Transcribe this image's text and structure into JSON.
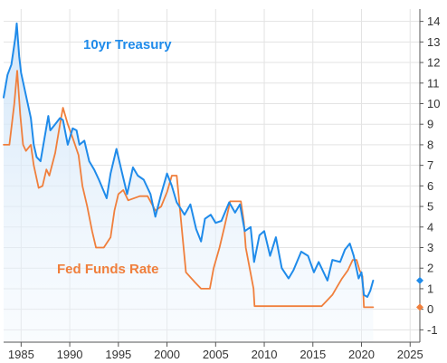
{
  "chart_data": {
    "type": "line",
    "title": "",
    "xlabel": "",
    "ylabel": "",
    "xlim": [
      1983.2,
      2026
    ],
    "ylim": [
      -1.6,
      14.6
    ],
    "y_ticks": [
      -1,
      0,
      1,
      2,
      3,
      4,
      5,
      6,
      7,
      8,
      9,
      10,
      11,
      12,
      13,
      14
    ],
    "x_ticks": [
      1985,
      1990,
      1995,
      2000,
      2005,
      2010,
      2015,
      2020,
      2025
    ],
    "grid": true,
    "y_axis_position": "right",
    "series": [
      {
        "name": "10yr Treasury",
        "color": "#1f8bea",
        "fill": "light-blue-gradient",
        "end_value": 1.4,
        "points": [
          [
            1983.2,
            10.3
          ],
          [
            1983.6,
            11.4
          ],
          [
            1984.0,
            11.9
          ],
          [
            1984.4,
            13.2
          ],
          [
            1984.55,
            13.9
          ],
          [
            1984.8,
            12.3
          ],
          [
            1985.0,
            11.5
          ],
          [
            1985.5,
            10.4
          ],
          [
            1986.0,
            9.3
          ],
          [
            1986.3,
            8.0
          ],
          [
            1986.6,
            7.4
          ],
          [
            1987.0,
            7.2
          ],
          [
            1987.4,
            8.3
          ],
          [
            1987.8,
            9.4
          ],
          [
            1988.0,
            8.7
          ],
          [
            1988.5,
            9.0
          ],
          [
            1989.0,
            9.3
          ],
          [
            1989.3,
            9.2
          ],
          [
            1989.8,
            8.0
          ],
          [
            1990.3,
            8.8
          ],
          [
            1990.7,
            8.7
          ],
          [
            1991.0,
            8.0
          ],
          [
            1991.5,
            8.2
          ],
          [
            1992.0,
            7.2
          ],
          [
            1992.5,
            6.8
          ],
          [
            1993.0,
            6.3
          ],
          [
            1993.8,
            5.4
          ],
          [
            1994.2,
            6.6
          ],
          [
            1994.8,
            7.8
          ],
          [
            1995.3,
            6.8
          ],
          [
            1995.9,
            5.6
          ],
          [
            1996.5,
            6.9
          ],
          [
            1997.0,
            6.5
          ],
          [
            1997.6,
            6.3
          ],
          [
            1998.3,
            5.6
          ],
          [
            1998.8,
            4.5
          ],
          [
            1999.4,
            5.6
          ],
          [
            2000.0,
            6.6
          ],
          [
            2000.5,
            6.0
          ],
          [
            2001.0,
            5.2
          ],
          [
            2001.8,
            4.6
          ],
          [
            2002.4,
            5.1
          ],
          [
            2003.0,
            3.9
          ],
          [
            2003.5,
            3.3
          ],
          [
            2003.9,
            4.4
          ],
          [
            2004.5,
            4.6
          ],
          [
            2005.0,
            4.2
          ],
          [
            2005.6,
            4.3
          ],
          [
            2006.4,
            5.2
          ],
          [
            2007.0,
            4.7
          ],
          [
            2007.5,
            5.1
          ],
          [
            2008.0,
            3.8
          ],
          [
            2008.6,
            4.0
          ],
          [
            2008.95,
            2.3
          ],
          [
            2009.5,
            3.6
          ],
          [
            2010.0,
            3.8
          ],
          [
            2010.6,
            2.6
          ],
          [
            2011.2,
            3.5
          ],
          [
            2011.8,
            2.0
          ],
          [
            2012.5,
            1.5
          ],
          [
            2013.0,
            1.9
          ],
          [
            2013.8,
            2.8
          ],
          [
            2014.5,
            2.6
          ],
          [
            2015.1,
            1.8
          ],
          [
            2015.6,
            2.3
          ],
          [
            2016.5,
            1.4
          ],
          [
            2017.0,
            2.4
          ],
          [
            2017.8,
            2.3
          ],
          [
            2018.3,
            2.9
          ],
          [
            2018.8,
            3.2
          ],
          [
            2019.2,
            2.6
          ],
          [
            2019.7,
            1.5
          ],
          [
            2020.0,
            1.8
          ],
          [
            2020.25,
            0.7
          ],
          [
            2020.6,
            0.6
          ],
          [
            2020.9,
            0.9
          ],
          [
            2021.2,
            1.4
          ]
        ]
      },
      {
        "name": "Fed Funds Rate",
        "color": "#f07f3c",
        "end_value": 0.1,
        "points": [
          [
            1983.2,
            8.0
          ],
          [
            1983.8,
            8.0
          ],
          [
            1984.3,
            10.0
          ],
          [
            1984.6,
            11.6
          ],
          [
            1984.9,
            9.5
          ],
          [
            1985.2,
            8.0
          ],
          [
            1985.5,
            7.7
          ],
          [
            1986.0,
            8.0
          ],
          [
            1986.3,
            7.0
          ],
          [
            1986.8,
            5.9
          ],
          [
            1987.2,
            6.0
          ],
          [
            1987.6,
            6.8
          ],
          [
            1987.9,
            6.5
          ],
          [
            1988.5,
            7.6
          ],
          [
            1989.0,
            9.0
          ],
          [
            1989.3,
            9.8
          ],
          [
            1989.8,
            9.0
          ],
          [
            1990.4,
            8.2
          ],
          [
            1990.9,
            7.5
          ],
          [
            1991.3,
            6.0
          ],
          [
            1991.8,
            5.0
          ],
          [
            1992.3,
            3.8
          ],
          [
            1992.7,
            3.0
          ],
          [
            1993.5,
            3.0
          ],
          [
            1994.2,
            3.5
          ],
          [
            1994.6,
            4.8
          ],
          [
            1995.0,
            5.6
          ],
          [
            1995.5,
            5.8
          ],
          [
            1996.0,
            5.3
          ],
          [
            1997.2,
            5.5
          ],
          [
            1998.0,
            5.5
          ],
          [
            1998.8,
            4.8
          ],
          [
            1999.4,
            5.0
          ],
          [
            2000.0,
            5.7
          ],
          [
            2000.5,
            6.5
          ],
          [
            2001.0,
            6.5
          ],
          [
            2001.2,
            5.5
          ],
          [
            2001.6,
            3.5
          ],
          [
            2001.95,
            1.8
          ],
          [
            2002.9,
            1.3
          ],
          [
            2003.5,
            1.0
          ],
          [
            2004.4,
            1.0
          ],
          [
            2004.8,
            2.0
          ],
          [
            2005.4,
            3.0
          ],
          [
            2005.9,
            4.0
          ],
          [
            2006.5,
            5.25
          ],
          [
            2007.6,
            5.25
          ],
          [
            2007.9,
            4.25
          ],
          [
            2008.1,
            3.0
          ],
          [
            2008.5,
            2.0
          ],
          [
            2008.9,
            1.0
          ],
          [
            2009.0,
            0.15
          ],
          [
            2015.9,
            0.15
          ],
          [
            2016.4,
            0.4
          ],
          [
            2017.0,
            0.7
          ],
          [
            2017.5,
            1.1
          ],
          [
            2018.0,
            1.5
          ],
          [
            2018.6,
            1.9
          ],
          [
            2019.1,
            2.4
          ],
          [
            2019.5,
            2.4
          ],
          [
            2019.8,
            1.9
          ],
          [
            2020.1,
            1.6
          ],
          [
            2020.25,
            0.1
          ],
          [
            2021.2,
            0.1
          ]
        ]
      }
    ]
  }
}
